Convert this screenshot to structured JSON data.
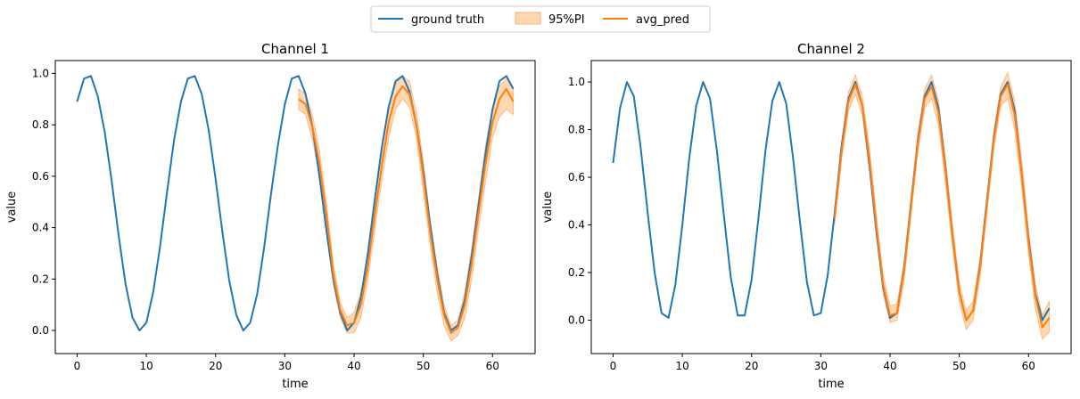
{
  "legend": {
    "placement": "top-center",
    "items": [
      {
        "label": "ground truth",
        "kind": "line",
        "color": "#1f77b4"
      },
      {
        "label": "95%PI",
        "kind": "band",
        "color": "#ff7f0e"
      },
      {
        "label": "avg_pred",
        "kind": "line",
        "color": "#ff7f0e"
      }
    ]
  },
  "colors": {
    "ground_truth": "#1f77b4",
    "prediction": "#ff7f0e",
    "interval_fill": "#ffd7b0",
    "interval_edge": "#ffb27a"
  },
  "chart_data": [
    {
      "type": "line",
      "title": "Channel 1",
      "xlabel": "time",
      "ylabel": "value",
      "xlim": [
        -3.15,
        66.15
      ],
      "ylim": [
        -0.09,
        1.05
      ],
      "xticks": [
        "0",
        "10",
        "20",
        "30",
        "40",
        "50",
        "60"
      ],
      "yticks": [
        "0.0",
        "0.2",
        "0.4",
        "0.6",
        "0.8",
        "1.0"
      ],
      "grid": false,
      "series": [
        {
          "name": "ground truth",
          "x_start": 0,
          "values": [
            0.89,
            0.98,
            0.99,
            0.91,
            0.77,
            0.58,
            0.37,
            0.18,
            0.05,
            0.0,
            0.03,
            0.15,
            0.33,
            0.54,
            0.74,
            0.89,
            0.98,
            0.99,
            0.92,
            0.78,
            0.59,
            0.38,
            0.19,
            0.06,
            0.0,
            0.03,
            0.14,
            0.32,
            0.53,
            0.72,
            0.88,
            0.98,
            0.99,
            0.92,
            0.79,
            0.6,
            0.39,
            0.2,
            0.07,
            0.0,
            0.03,
            0.13,
            0.3,
            0.51,
            0.71,
            0.87,
            0.97,
            0.99,
            0.93,
            0.8,
            0.62,
            0.41,
            0.22,
            0.07,
            0.0,
            0.02,
            0.12,
            0.29,
            0.49,
            0.69,
            0.86,
            0.97,
            0.99,
            0.94
          ]
        },
        {
          "name": "avg_pred",
          "x_start": 32,
          "values": [
            0.9,
            0.88,
            0.79,
            0.65,
            0.45,
            0.22,
            0.08,
            0.02,
            0.03,
            0.1,
            0.25,
            0.45,
            0.64,
            0.81,
            0.91,
            0.95,
            0.92,
            0.8,
            0.6,
            0.38,
            0.2,
            0.06,
            -0.01,
            0.01,
            0.1,
            0.26,
            0.46,
            0.65,
            0.81,
            0.9,
            0.94,
            0.89
          ]
        },
        {
          "name": "95%PI",
          "x_start": 32,
          "lower": [
            0.86,
            0.84,
            0.74,
            0.6,
            0.4,
            0.18,
            0.05,
            -0.01,
            -0.01,
            0.05,
            0.2,
            0.39,
            0.58,
            0.75,
            0.86,
            0.9,
            0.87,
            0.75,
            0.54,
            0.33,
            0.15,
            0.02,
            -0.04,
            -0.02,
            0.05,
            0.2,
            0.4,
            0.58,
            0.75,
            0.83,
            0.86,
            0.84
          ],
          "upper": [
            0.94,
            0.92,
            0.84,
            0.7,
            0.5,
            0.26,
            0.11,
            0.05,
            0.07,
            0.15,
            0.3,
            0.51,
            0.7,
            0.87,
            0.96,
            0.99,
            0.97,
            0.85,
            0.66,
            0.43,
            0.25,
            0.1,
            0.02,
            0.04,
            0.15,
            0.32,
            0.52,
            0.72,
            0.87,
            0.95,
            0.98,
            0.94
          ]
        }
      ]
    },
    {
      "type": "line",
      "title": "Channel 2",
      "xlabel": "time",
      "ylabel": "value",
      "xlim": [
        -3.15,
        66.15
      ],
      "ylim": [
        -0.14,
        1.09
      ],
      "xticks": [
        "0",
        "10",
        "20",
        "30",
        "40",
        "50",
        "60"
      ],
      "yticks": [
        "0.0",
        "0.2",
        "0.4",
        "0.6",
        "0.8",
        "1.0"
      ],
      "grid": false,
      "series": [
        {
          "name": "ground truth",
          "x_start": 0,
          "values": [
            0.66,
            0.89,
            1.0,
            0.94,
            0.72,
            0.45,
            0.2,
            0.03,
            0.01,
            0.15,
            0.4,
            0.68,
            0.9,
            1.0,
            0.93,
            0.71,
            0.44,
            0.18,
            0.02,
            0.02,
            0.17,
            0.43,
            0.71,
            0.92,
            1.0,
            0.91,
            0.68,
            0.41,
            0.16,
            0.02,
            0.03,
            0.19,
            0.45,
            0.73,
            0.93,
            1.0,
            0.9,
            0.66,
            0.38,
            0.14,
            0.01,
            0.03,
            0.21,
            0.48,
            0.75,
            0.94,
            1.0,
            0.89,
            0.64,
            0.36,
            0.12,
            0.0,
            0.04,
            0.23,
            0.5,
            0.77,
            0.95,
            1.0,
            0.88,
            0.62,
            0.34,
            0.11,
            0.0,
            0.05
          ]
        },
        {
          "name": "avg_pred",
          "x_start": 32,
          "values": [
            0.43,
            0.71,
            0.92,
            0.99,
            0.9,
            0.68,
            0.4,
            0.15,
            0.02,
            0.03,
            0.2,
            0.47,
            0.74,
            0.93,
            0.98,
            0.87,
            0.63,
            0.36,
            0.12,
            0.0,
            0.04,
            0.22,
            0.49,
            0.76,
            0.94,
            0.99,
            0.86,
            0.62,
            0.33,
            0.1,
            -0.03,
            0.01
          ]
        },
        {
          "name": "95%PI",
          "x_start": 32,
          "lower": [
            0.4,
            0.67,
            0.88,
            0.95,
            0.86,
            0.63,
            0.36,
            0.11,
            -0.01,
            0.0,
            0.16,
            0.43,
            0.7,
            0.89,
            0.93,
            0.82,
            0.58,
            0.31,
            0.08,
            -0.04,
            0.0,
            0.18,
            0.45,
            0.72,
            0.9,
            0.93,
            0.8,
            0.56,
            0.28,
            0.05,
            -0.08,
            -0.05
          ]
        },
        {
          "name": "95%PI",
          "x_start": 32,
          "lower": [
            0.4,
            0.67,
            0.88,
            0.95,
            0.86,
            0.63,
            0.36,
            0.11,
            -0.01,
            0.0,
            0.16,
            0.43,
            0.7,
            0.89,
            0.93,
            0.82,
            0.58,
            0.31,
            0.08,
            -0.04,
            0.0,
            0.18,
            0.45,
            0.72,
            0.9,
            0.93,
            0.8,
            0.56,
            0.28,
            0.05,
            -0.08,
            -0.05
          ],
          "upper": [
            0.46,
            0.75,
            0.96,
            1.03,
            0.94,
            0.73,
            0.45,
            0.19,
            0.06,
            0.07,
            0.24,
            0.51,
            0.78,
            0.97,
            1.03,
            0.92,
            0.68,
            0.41,
            0.16,
            0.04,
            0.08,
            0.26,
            0.53,
            0.8,
            0.98,
            1.04,
            0.92,
            0.68,
            0.38,
            0.15,
            0.02,
            0.08
          ]
        }
      ]
    }
  ]
}
